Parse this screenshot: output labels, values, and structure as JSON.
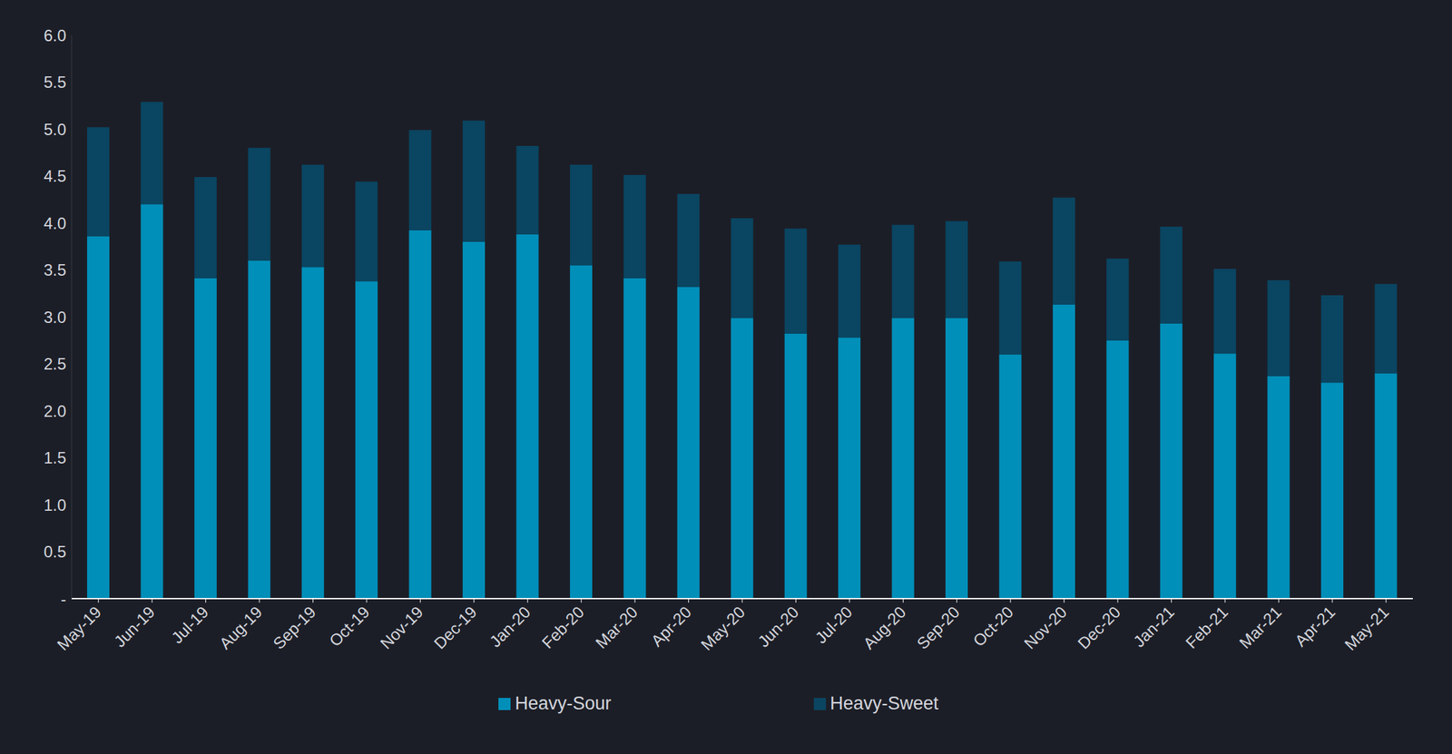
{
  "chart_data": {
    "type": "bar",
    "categories": [
      "May-19",
      "Jun-19",
      "Jul-19",
      "Aug-19",
      "Sep-19",
      "Oct-19",
      "Nov-19",
      "Dec-19",
      "Jan-20",
      "Feb-20",
      "Mar-20",
      "Apr-20",
      "May-20",
      "Jun-20",
      "Jul-20",
      "Aug-20",
      "Sep-20",
      "Oct-20",
      "Nov-20",
      "Dec-20",
      "Jan-21",
      "Feb-21",
      "Mar-21",
      "Apr-21",
      "May-21"
    ],
    "series": [
      {
        "name": "Heavy-Sour",
        "color": "#008fb9",
        "values": [
          3.86,
          4.2,
          3.41,
          3.6,
          3.53,
          3.38,
          3.92,
          3.8,
          3.88,
          3.55,
          3.41,
          3.32,
          2.99,
          2.82,
          2.78,
          2.99,
          2.99,
          2.6,
          3.13,
          2.75,
          2.93,
          2.61,
          2.37,
          2.3,
          2.4
        ]
      },
      {
        "name": "Heavy-Sweet",
        "color": "#0a4561",
        "values": [
          1.16,
          1.09,
          1.08,
          1.2,
          1.09,
          1.06,
          1.07,
          1.29,
          0.94,
          1.07,
          1.1,
          0.99,
          1.06,
          1.12,
          0.99,
          0.99,
          1.03,
          0.99,
          1.14,
          0.87,
          1.03,
          0.9,
          1.02,
          0.93,
          0.95
        ]
      }
    ],
    "ylim": [
      0,
      6
    ],
    "yticks": [
      {
        "value": 0,
        "label": "-"
      },
      0.5,
      {
        "value": 1,
        "label": "1.0"
      },
      1.5,
      {
        "value": 2,
        "label": "2.0"
      },
      2.5,
      {
        "value": 3,
        "label": "3.0"
      },
      3.5,
      {
        "value": 4,
        "label": "4.0"
      },
      4.5,
      {
        "value": 5,
        "label": "5.0"
      },
      5.5,
      {
        "value": 6,
        "label": "6.0"
      }
    ],
    "stacked": true,
    "legend": "bottom",
    "grid": false
  }
}
